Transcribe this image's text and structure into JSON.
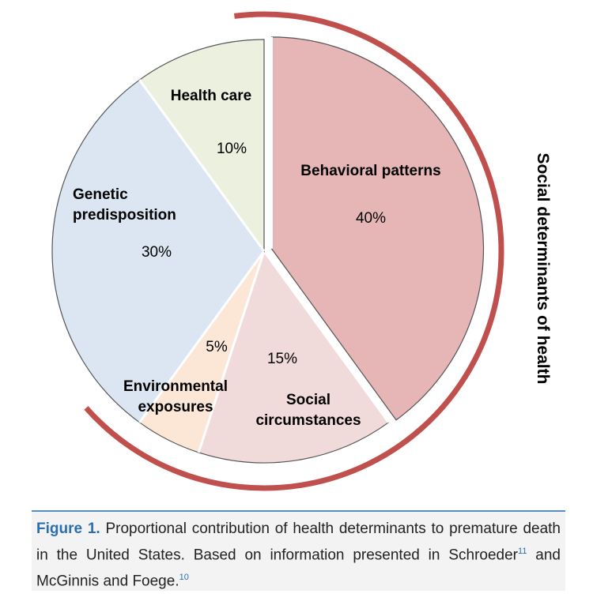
{
  "chart_data": {
    "type": "pie",
    "slices": [
      {
        "name": "Behavioral patterns",
        "label_lines": [
          "Behavioral patterns"
        ],
        "value": 40,
        "value_label": "40%",
        "color": "#e6b5b5"
      },
      {
        "name": "Social circumstances",
        "label_lines": [
          "Social",
          "circumstances"
        ],
        "value": 15,
        "value_label": "15%",
        "color": "#f1dada"
      },
      {
        "name": "Environmental exposures",
        "label_lines": [
          "Environmental",
          "exposures"
        ],
        "value": 5,
        "value_label": "5%",
        "color": "#fce7d6"
      },
      {
        "name": "Genetic predisposition",
        "label_lines": [
          "Genetic",
          "predisposition"
        ],
        "value": 30,
        "value_label": "30%",
        "color": "#dce6f2"
      },
      {
        "name": "Health care",
        "label_lines": [
          "Health care"
        ],
        "value": 10,
        "value_label": "10%",
        "color": "#ebf1de"
      }
    ],
    "bracket_label": "Social determinants of health",
    "bracket_color": "#c0504d"
  },
  "caption": {
    "figure_label": "Figure 1.",
    "text_1": " Proportional contribution of health determinants to premature death in the United States. Based on information presented in Schroeder",
    "ref_1": "11",
    "text_2": " and McGinnis and Foege.",
    "ref_2": "10"
  }
}
